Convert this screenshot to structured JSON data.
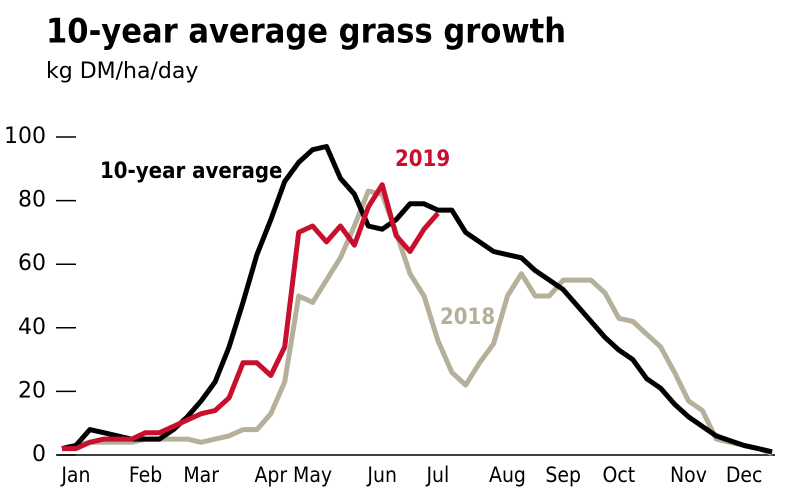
{
  "chart_data": {
    "type": "line",
    "title": "10-year average grass growth",
    "subtitle": "kg DM/ha/day",
    "categories": [
      null,
      "Jan",
      null,
      null,
      null,
      null,
      "Feb",
      null,
      null,
      null,
      "Mar",
      null,
      null,
      null,
      null,
      "Apr",
      null,
      null,
      "May",
      null,
      null,
      null,
      null,
      "Jun",
      null,
      null,
      null,
      "Jul",
      null,
      null,
      null,
      null,
      "Aug",
      null,
      null,
      null,
      "Sep",
      null,
      null,
      null,
      "Oct",
      null,
      null,
      null,
      null,
      "Nov",
      null,
      null,
      null,
      "Dec",
      null,
      null
    ],
    "series": [
      {
        "name": "10-year average",
        "color": "#000000",
        "values": [
          2,
          3,
          8,
          7,
          6,
          5,
          5,
          5,
          8,
          12,
          17,
          23,
          34,
          48,
          63,
          74,
          86,
          92,
          96,
          97,
          87,
          82,
          72,
          71,
          74,
          79,
          79,
          77,
          77,
          70,
          67,
          64,
          63,
          62,
          58,
          55,
          52,
          47,
          42,
          37,
          33,
          30,
          24,
          21,
          16,
          12,
          9,
          6,
          4.5,
          3,
          2,
          1
        ]
      },
      {
        "name": "2019",
        "color": "#c8102e",
        "values": [
          2,
          2,
          4,
          5,
          5,
          5,
          7,
          7,
          9,
          11,
          13,
          14,
          18,
          29,
          29,
          25,
          34,
          70,
          72,
          67,
          72,
          66,
          78,
          85,
          69,
          64,
          71,
          76,
          null,
          null,
          null,
          null,
          null,
          null,
          null,
          null,
          null,
          null,
          null,
          null,
          null,
          null,
          null,
          null,
          null,
          null,
          null,
          null,
          null,
          null,
          null,
          null
        ]
      },
      {
        "name": "2018",
        "color": "#b5b09a",
        "values": [
          2,
          3,
          4,
          4,
          4,
          4,
          5,
          5,
          5,
          5,
          4,
          5,
          6,
          8,
          8,
          13,
          23,
          50,
          48,
          55,
          62,
          72,
          83,
          82,
          70,
          57,
          50,
          36,
          26,
          22,
          29,
          35,
          50,
          57,
          50,
          50,
          55,
          55,
          55,
          51,
          43,
          42,
          38,
          34,
          26,
          17,
          14,
          5,
          4,
          3,
          2,
          0.5
        ]
      }
    ],
    "ylim": [
      0,
      100
    ],
    "yticks": [
      0,
      20,
      40,
      60,
      80,
      100
    ]
  }
}
